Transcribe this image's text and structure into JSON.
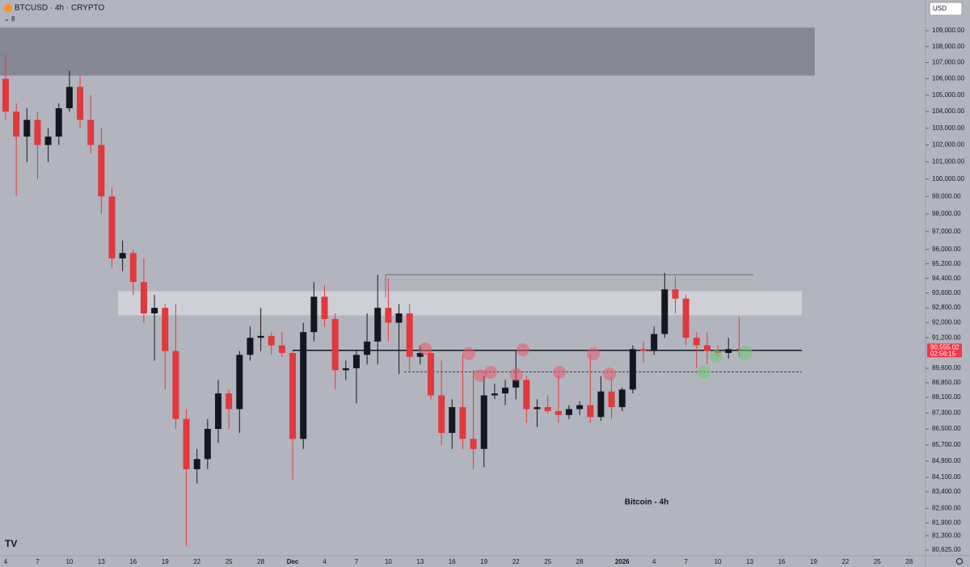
{
  "chart_data": {
    "type": "candlestick",
    "title": "BTCUSD · 4h · CRYPTO",
    "indicator_count": "8",
    "currency_button": "USD",
    "annotation": "Bitcoin - 4h",
    "last_price": {
      "value": 90555.02,
      "label": "90,555.02"
    },
    "countdown": "02:56:15",
    "log_scale": true,
    "up_color": "#131722",
    "down_color": "#e0393e",
    "categories": [
      "4",
      null,
      null,
      "7",
      null,
      null,
      "10",
      null,
      null,
      "13",
      null,
      null,
      "16",
      null,
      null,
      "19",
      null,
      null,
      "22",
      null,
      null,
      "25",
      null,
      null,
      "28",
      null,
      null,
      "Dec",
      null,
      null,
      "4",
      null,
      null,
      "7",
      null,
      null,
      "10",
      null,
      null,
      "13",
      null,
      null,
      "16",
      null,
      null,
      "19",
      null,
      null,
      "22",
      null,
      null,
      "25",
      null,
      null,
      "28",
      null,
      null,
      null,
      "2026",
      null,
      null,
      "4",
      null,
      null,
      "7",
      null,
      null,
      "10",
      null,
      null,
      "13",
      null,
      null,
      "16",
      null,
      null,
      "19",
      null,
      null,
      "22",
      null,
      null,
      "25",
      null,
      null,
      "28",
      null
    ],
    "open": [
      106000,
      104000,
      102500,
      103500,
      102000,
      102500,
      104200,
      105500,
      103500,
      102000,
      99000,
      95500,
      95800,
      94200,
      92500,
      92800,
      90500,
      87000,
      84500,
      85000,
      86500,
      88300,
      87500,
      90300,
      91200,
      91300,
      90800,
      90400,
      86000,
      91500,
      93400,
      92200,
      89500,
      89600,
      90300,
      91000,
      92800,
      92000,
      92500,
      90200,
      90400,
      88200,
      86300,
      87600,
      86000,
      85500,
      88200,
      88300,
      88600,
      89000,
      87500,
      87600,
      87400,
      87200,
      87500,
      87700,
      87100,
      88400,
      87600,
      88500,
      90600,
      90500,
      91400,
      93800,
      93300,
      91200,
      90800,
      90500,
      90400,
      90600,
      null,
      null,
      null,
      null,
      null,
      null,
      null,
      null,
      null,
      null,
      null,
      null,
      null,
      null,
      null,
      null,
      null
    ],
    "high": [
      107500,
      104500,
      104200,
      104000,
      103000,
      104500,
      106500,
      106200,
      105000,
      103000,
      99500,
      96500,
      96000,
      95500,
      93500,
      93000,
      93000,
      87500,
      85500,
      87000,
      89000,
      88500,
      90500,
      91800,
      92800,
      91500,
      91500,
      90500,
      92000,
      94200,
      94000,
      92500,
      90000,
      90500,
      92500,
      94600,
      94400,
      93000,
      93000,
      90800,
      90600,
      90000,
      88000,
      90300,
      89500,
      89200,
      88800,
      89000,
      90500,
      89200,
      88000,
      88200,
      89300,
      87700,
      87900,
      90300,
      89200,
      89100,
      88600,
      90800,
      91000,
      91800,
      94700,
      94500,
      93500,
      91500,
      91500,
      90800,
      91200,
      92300,
      null,
      null,
      null,
      null,
      null,
      null,
      null,
      null,
      null,
      null,
      null,
      null,
      null,
      null,
      null,
      null,
      null
    ],
    "low": [
      103500,
      99000,
      101000,
      100000,
      101000,
      102000,
      104000,
      103000,
      101500,
      98000,
      95000,
      94800,
      93500,
      92000,
      90000,
      88500,
      86500,
      80800,
      83800,
      84500,
      85800,
      86500,
      86300,
      90000,
      90500,
      90300,
      90200,
      84000,
      85500,
      91000,
      91800,
      88500,
      89000,
      87800,
      89800,
      89800,
      91000,
      89300,
      89500,
      89800,
      88000,
      85700,
      85500,
      85500,
      84500,
      84600,
      88000,
      87700,
      88000,
      86800,
      86600,
      87300,
      86800,
      87000,
      87200,
      86800,
      86900,
      87000,
      87400,
      88300,
      89900,
      90300,
      91200,
      92500,
      90800,
      89600,
      89800,
      90200,
      90100,
      90200,
      null,
      null,
      null,
      null,
      null,
      null,
      null,
      null,
      null,
      null,
      null,
      null,
      null,
      null,
      null,
      null,
      null
    ],
    "close": [
      104000,
      102500,
      103500,
      102000,
      102500,
      104200,
      105500,
      103500,
      102000,
      99000,
      95500,
      95800,
      94200,
      92500,
      92800,
      90500,
      87000,
      84500,
      85000,
      86500,
      88300,
      87500,
      90300,
      91200,
      91300,
      90800,
      90400,
      86000,
      91500,
      93400,
      92200,
      89500,
      89600,
      90300,
      91000,
      92800,
      92000,
      92500,
      90200,
      90400,
      88200,
      86300,
      87600,
      86000,
      85500,
      88200,
      88300,
      88600,
      89000,
      87500,
      87600,
      87400,
      87200,
      87500,
      87700,
      87100,
      88400,
      87600,
      88500,
      90600,
      90500,
      91400,
      93800,
      93300,
      91200,
      90800,
      90500,
      90400,
      90600,
      90555,
      null,
      null,
      null,
      null,
      null,
      null,
      null,
      null,
      null,
      null,
      null,
      null,
      null,
      null,
      null,
      null,
      null
    ],
    "zones": [
      {
        "low": 106200,
        "high": 109200
      },
      {
        "low": 92400,
        "high": 93700
      }
    ],
    "levels": [
      {
        "value": 90540,
        "style": "solid"
      },
      {
        "value": 89420,
        "style": "dashed"
      },
      {
        "value": 94600,
        "style": "thin"
      }
    ],
    "ylim": [
      80286,
      110960
    ],
    "yticks": [
      {
        "value": 109000,
        "label": "109,000.00"
      },
      {
        "value": 108000,
        "label": "108,000.00"
      },
      {
        "value": 107000,
        "label": "107,000.00"
      },
      {
        "value": 106000,
        "label": "106,000.00"
      },
      {
        "value": 105000,
        "label": "105,000.00"
      },
      {
        "value": 104000,
        "label": "104,000.00"
      },
      {
        "value": 103000,
        "label": "103,000.00"
      },
      {
        "value": 102000,
        "label": "102,000.00"
      },
      {
        "value": 101000,
        "label": "101,000.00"
      },
      {
        "value": 100000,
        "label": "100,000.00"
      },
      {
        "value": 99000,
        "label": "99,000.00"
      },
      {
        "value": 98000,
        "label": "98,000.00"
      },
      {
        "value": 97000,
        "label": "97,000.00"
      },
      {
        "value": 96000,
        "label": "96,000.00"
      },
      {
        "value": 95200,
        "label": "95,200.00"
      },
      {
        "value": 94400,
        "label": "94,400.00"
      },
      {
        "value": 93600,
        "label": "93,600.00"
      },
      {
        "value": 92800,
        "label": "92,800.00"
      },
      {
        "value": 92000,
        "label": "92,000.00"
      },
      {
        "value": 91200,
        "label": "91,200.00"
      },
      {
        "value": 89600,
        "label": "89,600.00"
      },
      {
        "value": 88850,
        "label": "88,850.00"
      },
      {
        "value": 88100,
        "label": "88,100.00"
      },
      {
        "value": 87300,
        "label": "87,300.00"
      },
      {
        "value": 86500,
        "label": "86,500.00"
      },
      {
        "value": 85700,
        "label": "85,700.00"
      },
      {
        "value": 84900,
        "label": "84,900.00"
      },
      {
        "value": 84100,
        "label": "84,100.00"
      },
      {
        "value": 83400,
        "label": "83,400.00"
      },
      {
        "value": 82600,
        "label": "82,600.00"
      },
      {
        "value": 81900,
        "label": "81,900.00"
      },
      {
        "value": 81300,
        "label": "81,300.00"
      },
      {
        "value": 80625,
        "label": "80,625.00"
      }
    ]
  }
}
